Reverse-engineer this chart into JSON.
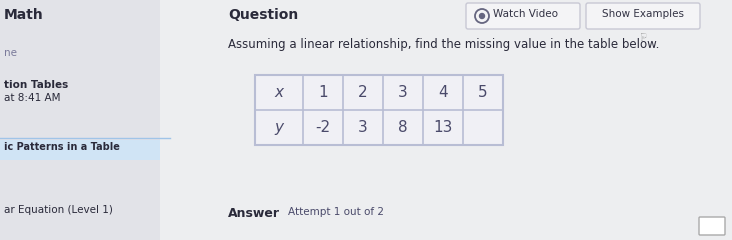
{
  "title_left": "Math",
  "title_mid": "Question",
  "btn1_text": "Watch Video",
  "btn2_text": "Show Examples",
  "instruction": "Assuming a linear relationship, find the missing value in the table below.",
  "sidebar_label_ne": "ne",
  "sidebar_label_tables": "tion Tables",
  "sidebar_label_time": "at 8:41 AM",
  "sidebar_highlight_text": "ic Patterns in a Table",
  "sidebar_bottom_text": "ar Equation (Level 1)",
  "answer_label": "Answer",
  "attempt_label": "Attempt 1 out of 2",
  "table_x_header": "x",
  "table_y_header": "y",
  "table_x_values": [
    "1",
    "2",
    "3",
    "4",
    "5"
  ],
  "table_y_values": [
    "-2",
    "3",
    "8",
    "13",
    ""
  ],
  "page_bg": "#edeef0",
  "sidebar_bg": "#e2e3e8",
  "main_bg": "#edeef0",
  "table_bg": "#f0f0f5",
  "table_border": "#b8bdd4",
  "text_dark": "#2a2a3a",
  "text_mid": "#4a4a6a",
  "text_light": "#7a7a9a",
  "sidebar_highlight_bg": "#d0e4f5",
  "sidebar_highlight_line": "#a0c4e8",
  "btn_bg": "#f4f4f6",
  "btn_border": "#c8c8d4",
  "btn_text": "#333344",
  "watch_icon_color": "#666680",
  "cursor_color": "#888888"
}
